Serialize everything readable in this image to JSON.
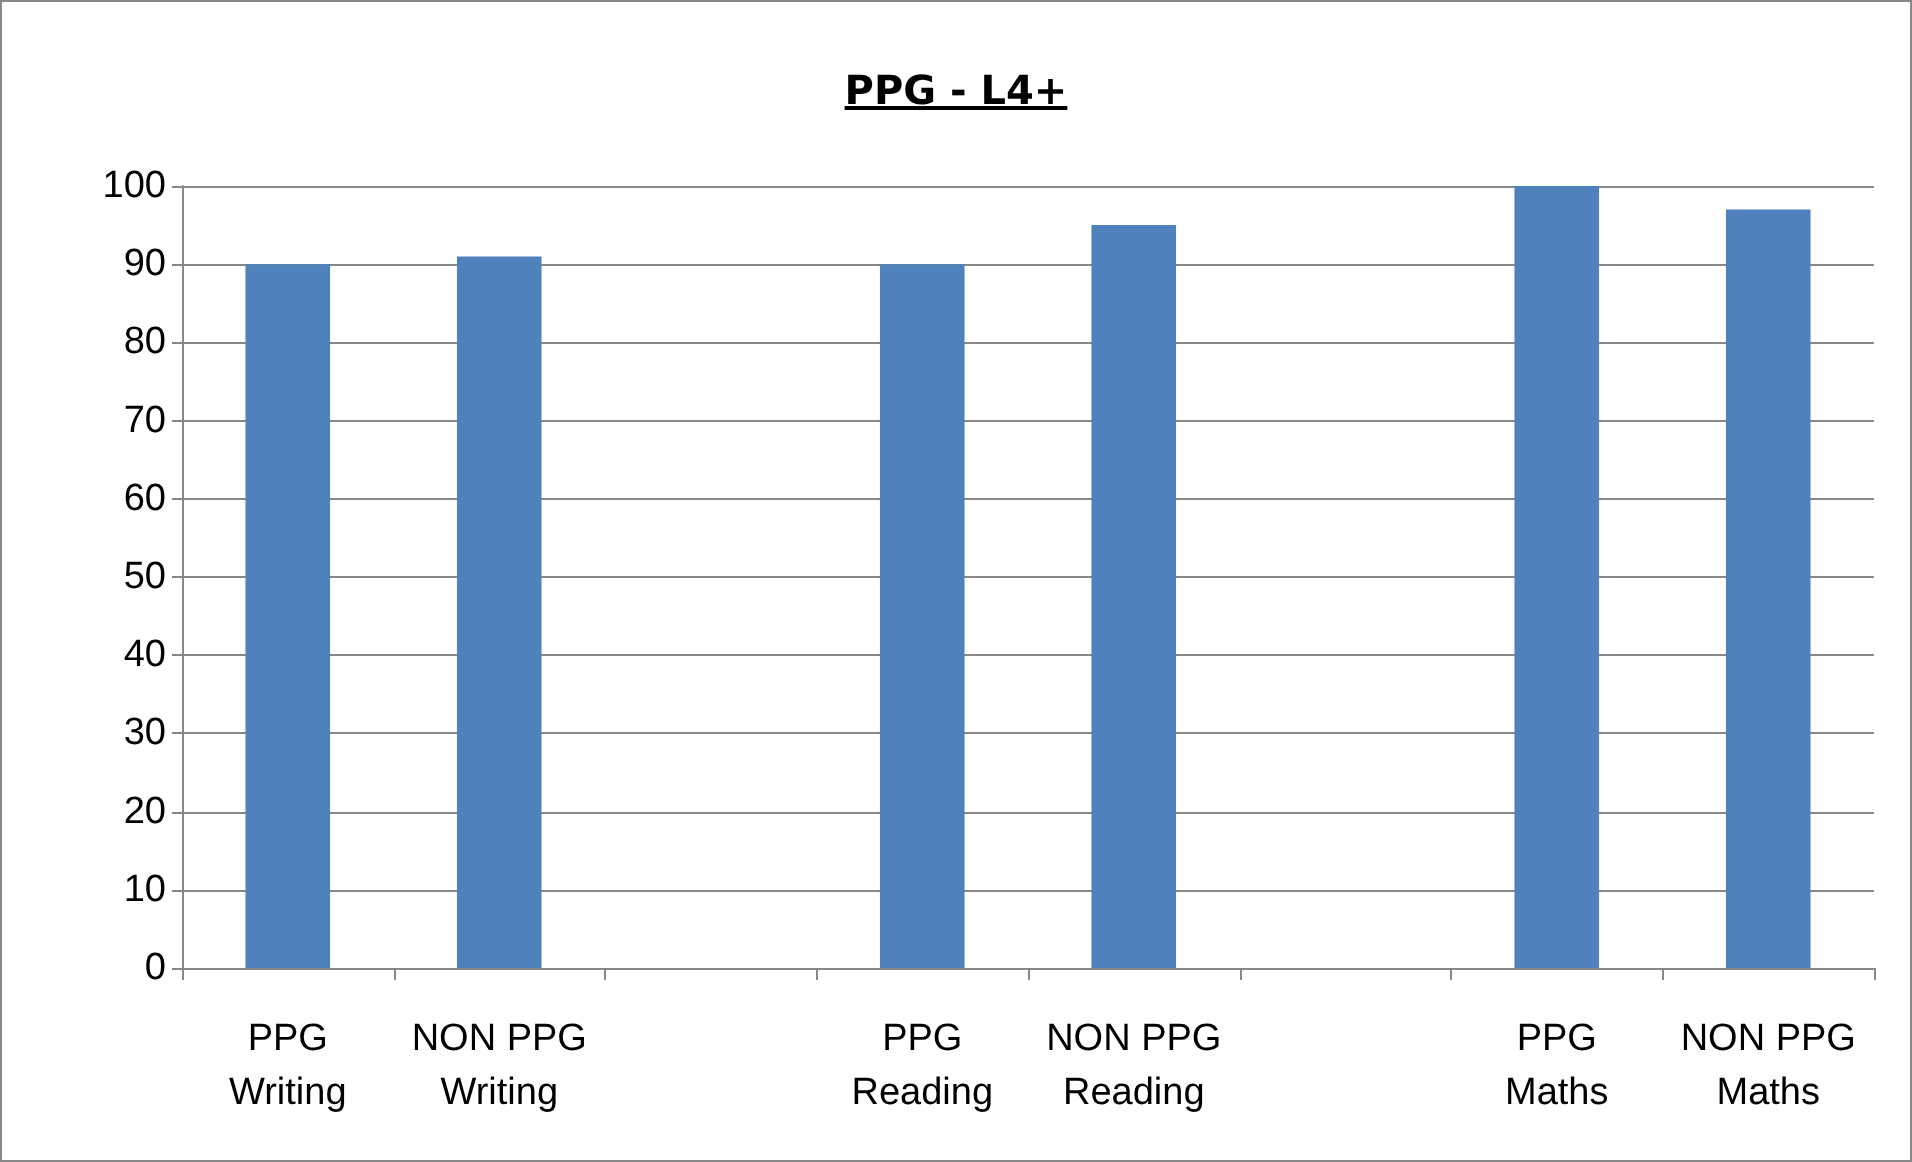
{
  "chart_data": {
    "type": "bar",
    "title": "PPG - L4+",
    "categories": [
      "PPG Writing",
      "NON PPG Writing",
      null,
      "PPG Reading",
      "NON PPG Reading",
      null,
      "PPG Maths",
      "NON PPG Maths"
    ],
    "values": [
      90,
      91,
      null,
      90,
      95,
      null,
      100,
      97
    ],
    "color": "#4f81bd",
    "ylim": [
      0,
      100
    ],
    "yticks": [
      0,
      10,
      20,
      30,
      40,
      50,
      60,
      70,
      80,
      90,
      100
    ],
    "grid": "y"
  }
}
